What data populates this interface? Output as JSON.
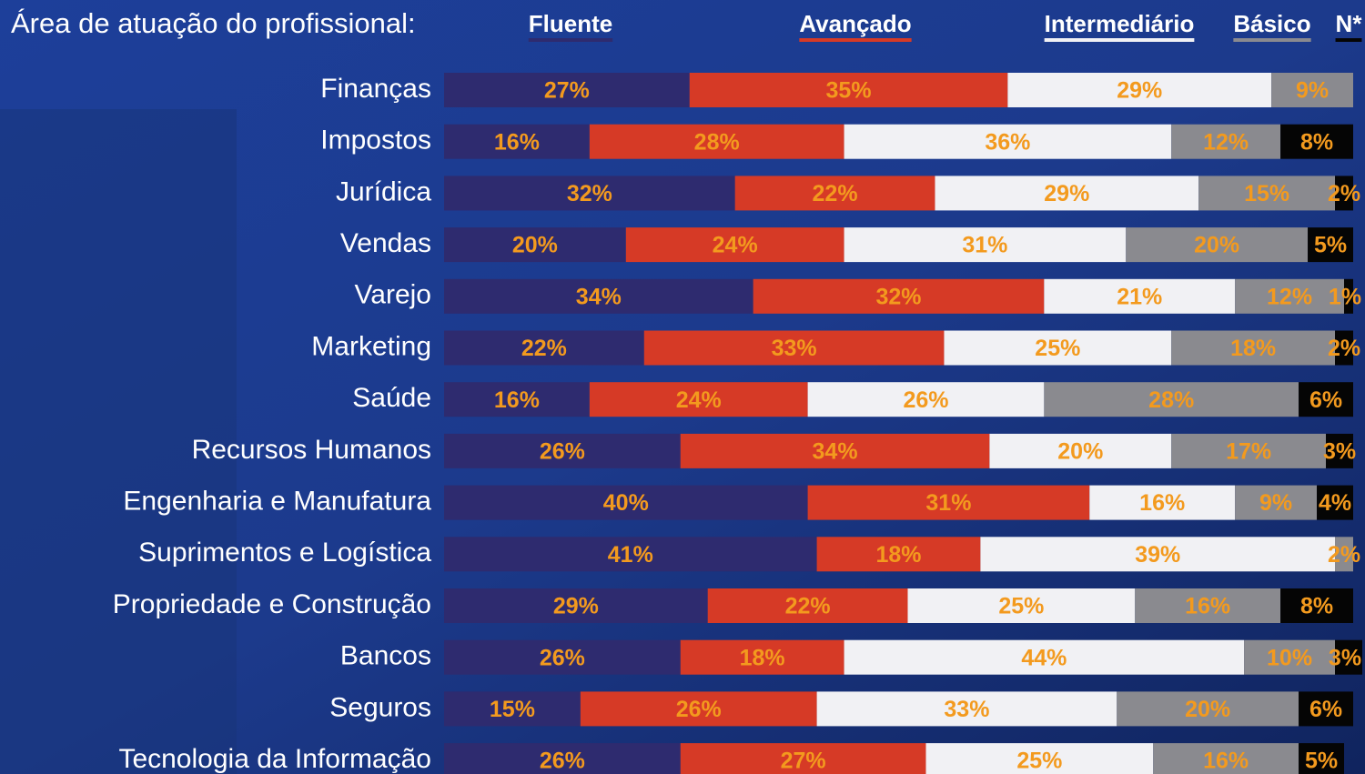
{
  "chart_data": {
    "type": "bar",
    "orientation": "horizontal",
    "stacked": true,
    "title": "Área de atuação do profissional:",
    "categories": [
      "Finanças",
      "Impostos",
      "Jurídica",
      "Vendas",
      "Varejo",
      "Marketing",
      "Saúde",
      "Recursos Humanos",
      "Engenharia e Manufatura",
      "Suprimentos e Logística",
      "Propriedade e Construção",
      "Bancos",
      "Seguros",
      "Tecnologia da Informação"
    ],
    "xlim": [
      0,
      100
    ],
    "series": [
      {
        "name": "Fluente",
        "color": "#2e2b6f",
        "values": [
          27,
          16,
          32,
          20,
          34,
          22,
          16,
          26,
          40,
          41,
          29,
          26,
          15,
          26
        ],
        "value_labels": [
          "27%",
          "16%",
          "32%",
          "20%",
          "34%",
          "22%",
          "16%",
          "26%",
          "40%",
          "41%",
          "29%",
          "26%",
          "15%",
          "26%"
        ]
      },
      {
        "name": "Avançado",
        "color": "#d63a26",
        "values": [
          35,
          28,
          22,
          24,
          32,
          33,
          24,
          34,
          31,
          18,
          22,
          18,
          26,
          27
        ],
        "value_labels": [
          "35%",
          "28%",
          "22%",
          "24%",
          "32%",
          "33%",
          "24%",
          "34%",
          "31%",
          "18%",
          "22%",
          "18%",
          "26%",
          "27%"
        ]
      },
      {
        "name": "Intermediário",
        "color": "#f1f1f4",
        "values": [
          29,
          36,
          29,
          31,
          21,
          25,
          26,
          20,
          16,
          39,
          25,
          44,
          33,
          25
        ],
        "value_labels": [
          "29%",
          "36%",
          "29%",
          "31%",
          "21%",
          "25%",
          "26%",
          "20%",
          "16%",
          "39%",
          "25%",
          "44%",
          "33%",
          "25%"
        ]
      },
      {
        "name": "Básico",
        "color": "#8a8a8f",
        "values": [
          9,
          12,
          15,
          20,
          12,
          18,
          28,
          17,
          9,
          2,
          16,
          10,
          20,
          16
        ],
        "value_labels": [
          "9%",
          "12%",
          "15%",
          "20%",
          "12%",
          "18%",
          "28%",
          "17%",
          "9%",
          "2%",
          "16%",
          "10%",
          "20%",
          "16%"
        ]
      },
      {
        "name": "N*",
        "color": "#050505",
        "values": [
          null,
          8,
          2,
          5,
          1,
          2,
          6,
          3,
          4,
          null,
          8,
          3,
          6,
          5
        ],
        "value_labels": [
          null,
          "8%",
          "2%",
          "5%",
          "1%",
          "2%",
          "6%",
          "3%",
          "4%",
          null,
          "8%",
          "3%",
          "6%",
          "5%"
        ]
      }
    ]
  }
}
